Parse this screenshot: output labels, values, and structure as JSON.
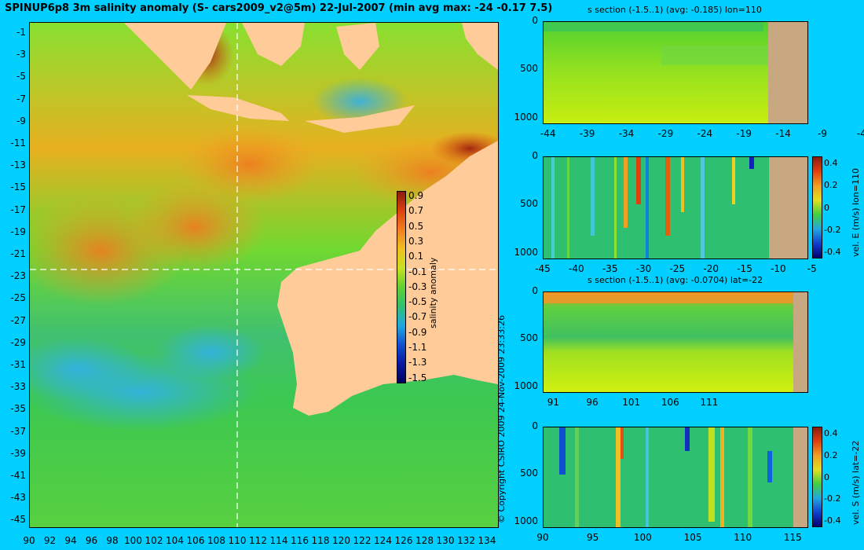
{
  "title": "SPINUP6p8 3m salinity anomaly (S- cars2009_v2@5m) 22-Jul-2007 (min avg max: -24 -0.17 7.5)",
  "copyright": "© Copyright CSIRO 2009   24-Nov-2009 23:33:26",
  "map": {
    "lat_ticks": [
      "-1",
      "-3",
      "-5",
      "-7",
      "-9",
      "-11",
      "-13",
      "-15",
      "-17",
      "-19",
      "-21",
      "-23",
      "-25",
      "-27",
      "-29",
      "-31",
      "-33",
      "-35",
      "-37",
      "-39",
      "-41",
      "-43",
      "-45"
    ],
    "lon_ticks": [
      "90",
      "92",
      "94",
      "96",
      "98",
      "100",
      "102",
      "104",
      "106",
      "108",
      "110",
      "112",
      "114",
      "116",
      "118",
      "120",
      "122",
      "124",
      "126",
      "128",
      "130",
      "132",
      "134"
    ],
    "colorbar_label": "salinity anomaly",
    "colorbar_ticks": [
      "0.9",
      "0.7",
      "0.5",
      "0.3",
      "0.1",
      "-0.1",
      "-0.3",
      "-0.5",
      "-0.7",
      "-0.9",
      "-1.1",
      "-1.3",
      "-1.5"
    ],
    "crosshair": {
      "lon": "110",
      "lat": "-22"
    },
    "colors": {
      "ocean_high": "#ff8c00",
      "ocean_mid": "#40d020",
      "ocean_low": "#30b8e8",
      "land": "#ffcc99"
    }
  },
  "panels": [
    {
      "title": "s section (-1.5..1) (avg: -0.185) lon=110",
      "y_ticks": [
        "0",
        "500",
        "1000"
      ],
      "x_ticks": [
        "-44",
        "-39",
        "-34",
        "-29",
        "-24",
        "-19",
        "-14",
        "-9",
        "-4"
      ],
      "colorbar_label": "",
      "colorbar_ticks": []
    },
    {
      "title": "",
      "y_ticks": [
        "0",
        "500",
        "1000"
      ],
      "x_ticks": [
        "-45",
        "-40",
        "-35",
        "-30",
        "-25",
        "-20",
        "-15",
        "-10",
        "-5"
      ],
      "colorbar_label": "vel. E (m/s) lon=110",
      "colorbar_ticks": [
        "0.4",
        "0.2",
        "0",
        "-0.2",
        "-0.4"
      ]
    },
    {
      "title": "s section (-1.5..1) (avg: -0.0704) lat=-22",
      "y_ticks": [
        "0",
        "500",
        "1000"
      ],
      "x_ticks": [
        "91",
        "96",
        "101",
        "106",
        "111"
      ],
      "colorbar_label": "",
      "colorbar_ticks": []
    },
    {
      "title": "",
      "y_ticks": [
        "0",
        "500",
        "1000"
      ],
      "x_ticks": [
        "90",
        "95",
        "100",
        "105",
        "110",
        "115"
      ],
      "colorbar_label": "vel. S (m/s) lat=-22",
      "colorbar_ticks": [
        "0.4",
        "0.2",
        "0",
        "-0.2",
        "-0.4"
      ]
    }
  ]
}
